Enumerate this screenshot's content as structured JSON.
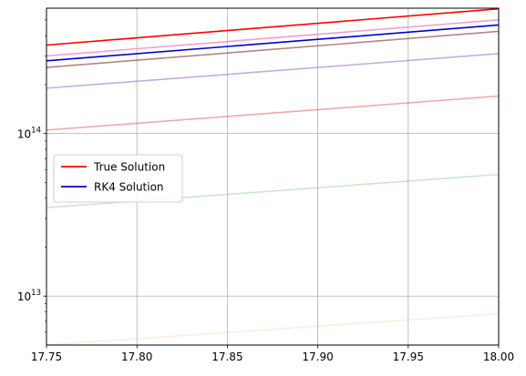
{
  "chart_data": {
    "type": "line",
    "title": "",
    "xlabel": "",
    "ylabel": "",
    "xscale": "linear",
    "yscale": "log",
    "xlim": [
      17.75,
      18.0
    ],
    "ylim": [
      5000000000000.0,
      590000000000000.0
    ],
    "grid": true,
    "legend": {
      "placement": "center-left"
    },
    "x_ticks": [
      {
        "value": 17.75,
        "label": "17.75"
      },
      {
        "value": 17.8,
        "label": "17.80"
      },
      {
        "value": 17.85,
        "label": "17.85"
      },
      {
        "value": 17.9,
        "label": "17.90"
      },
      {
        "value": 17.95,
        "label": "17.95"
      },
      {
        "value": 18.0,
        "label": "18.00"
      }
    ],
    "y_major_ticks": [
      {
        "value": 10000000000000.0,
        "base": "10",
        "exponent": "13"
      },
      {
        "value": 100000000000000.0,
        "base": "10",
        "exponent": "14"
      }
    ],
    "y_minor_ticks": [
      6000000000000.0,
      7000000000000.0,
      8000000000000.0,
      9000000000000.0,
      20000000000000.0,
      30000000000000.0,
      40000000000000.0,
      50000000000000.0,
      60000000000000.0,
      70000000000000.0,
      80000000000000.0,
      90000000000000.0,
      200000000000000.0,
      300000000000000.0,
      400000000000000.0,
      500000000000000.0
    ],
    "series": [
      {
        "name": "True Solution",
        "color": "#ff0000",
        "opacity": 1.0,
        "x": [
          17.75,
          18.0
        ],
        "y": [
          350000000000000.0,
          585000000000000.0
        ]
      },
      {
        "name": "RK4 Solution",
        "color": "#0000cc",
        "opacity": 1.0,
        "x": [
          17.75,
          18.0
        ],
        "y": [
          280000000000000.0,
          465000000000000.0
        ]
      },
      {
        "color": "#e377c2",
        "opacity": 0.7,
        "x": [
          17.75,
          18.0
        ],
        "y": [
          300000000000000.0,
          500000000000000.0
        ]
      },
      {
        "color": "#8c564b",
        "opacity": 0.7,
        "x": [
          17.75,
          18.0
        ],
        "y": [
          255000000000000.0,
          425000000000000.0
        ]
      },
      {
        "color": "#9467bd",
        "opacity": 0.55,
        "x": [
          17.75,
          18.0
        ],
        "y": [
          190000000000000.0,
          310000000000000.0
        ]
      },
      {
        "color": "#d62728",
        "opacity": 0.4,
        "x": [
          17.75,
          18.0
        ],
        "y": [
          105000000000000.0,
          170000000000000.0
        ]
      },
      {
        "color": "#2ca02c",
        "opacity": 0.25,
        "x": [
          17.75,
          18.0
        ],
        "y": [
          35000000000000.0,
          56000000000000.0
        ]
      },
      {
        "color": "#ff7f0e",
        "opacity": 0.15,
        "x": [
          17.75,
          18.0
        ],
        "y": [
          5000000000000.0,
          7800000000000.0
        ]
      }
    ]
  }
}
